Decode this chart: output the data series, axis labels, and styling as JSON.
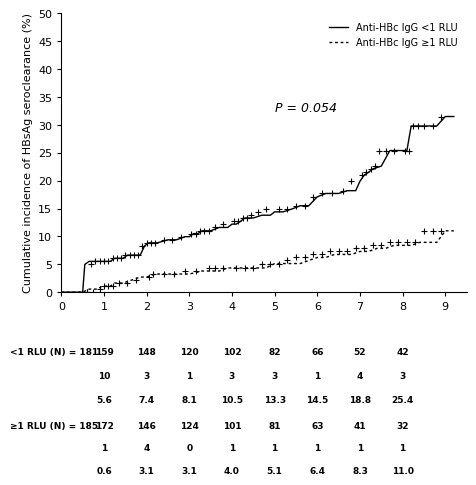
{
  "ylabel": "Cumulative incidence of HBsAg seroclearance (%)",
  "xlim": [
    0,
    9.5
  ],
  "ylim": [
    0,
    50
  ],
  "yticks": [
    0,
    5,
    10,
    15,
    20,
    25,
    30,
    35,
    40,
    45,
    50
  ],
  "xticks": [
    0,
    1,
    2,
    3,
    4,
    5,
    6,
    7,
    8,
    9
  ],
  "p_value_text": "P = 0.054",
  "p_value_x": 5.0,
  "p_value_y": 33,
  "legend_labels": [
    "Anti-HBc IgG <1 RLU",
    "Anti-HBc IgG ≥1 RLU"
  ],
  "line1_color": "#000000",
  "line2_color": "#000000",
  "background_color": "#ffffff",
  "table_row2_values": [
    159,
    148,
    120,
    102,
    82,
    66,
    52,
    42
  ],
  "table_row3_values": [
    10,
    3,
    1,
    3,
    3,
    1,
    4,
    3
  ],
  "table_row4_values": [
    5.6,
    7.4,
    8.1,
    10.5,
    13.3,
    14.5,
    18.8,
    25.4
  ],
  "table_row6_values": [
    172,
    146,
    124,
    101,
    81,
    63,
    41,
    32
  ],
  "table_row7_values": [
    1,
    4,
    0,
    1,
    1,
    1,
    1,
    1
  ],
  "table_row8_values": [
    0.6,
    3.1,
    3.1,
    4.0,
    5.1,
    6.4,
    8.3,
    11.0
  ],
  "solid_x": [
    0,
    0.5,
    0.55,
    0.65,
    0.75,
    0.85,
    0.95,
    1.05,
    1.15,
    1.25,
    1.35,
    1.45,
    1.55,
    1.65,
    1.75,
    1.85,
    1.95,
    2.05,
    2.15,
    2.25,
    2.5,
    2.7,
    2.9,
    3.0,
    3.1,
    3.2,
    3.3,
    3.5,
    3.7,
    3.9,
    4.0,
    4.1,
    4.2,
    4.3,
    4.5,
    4.7,
    4.9,
    5.0,
    5.2,
    5.4,
    5.6,
    5.8,
    6.0,
    6.2,
    6.5,
    6.7,
    6.9,
    7.0,
    7.1,
    7.2,
    7.3,
    7.5,
    7.7,
    7.9,
    8.0,
    8.1,
    8.2,
    8.3,
    8.4,
    8.6,
    8.8,
    9.0,
    9.2
  ],
  "solid_y": [
    0,
    0,
    4.97,
    5.52,
    5.52,
    5.52,
    5.52,
    5.52,
    5.52,
    6.08,
    6.08,
    6.08,
    6.64,
    6.64,
    6.64,
    6.64,
    8.29,
    8.84,
    8.84,
    8.84,
    9.39,
    9.39,
    9.95,
    9.95,
    10.5,
    10.5,
    11.0,
    11.0,
    11.6,
    11.6,
    12.2,
    12.2,
    12.7,
    13.3,
    13.3,
    13.8,
    13.8,
    14.4,
    14.4,
    14.9,
    15.5,
    15.5,
    17.1,
    17.7,
    17.7,
    18.2,
    18.2,
    19.9,
    21.0,
    21.5,
    22.1,
    22.6,
    25.4,
    25.4,
    25.4,
    25.4,
    29.8,
    29.8,
    29.8,
    29.8,
    29.8,
    31.5,
    31.5
  ],
  "dashed_x": [
    0,
    0.5,
    0.65,
    0.85,
    0.95,
    1.05,
    1.15,
    1.25,
    1.45,
    1.65,
    1.85,
    2.0,
    2.2,
    2.5,
    2.8,
    3.0,
    3.3,
    3.5,
    3.7,
    3.9,
    4.0,
    4.2,
    4.4,
    4.6,
    4.8,
    5.0,
    5.2,
    5.4,
    5.6,
    5.8,
    6.0,
    6.2,
    6.4,
    6.6,
    6.8,
    7.0,
    7.2,
    7.4,
    7.6,
    7.8,
    8.0,
    8.2,
    8.4,
    8.6,
    8.8,
    9.0,
    9.2
  ],
  "dashed_y": [
    0,
    0,
    0.54,
    0.54,
    1.08,
    1.08,
    1.08,
    1.63,
    1.63,
    2.17,
    2.71,
    2.71,
    3.25,
    3.25,
    3.25,
    3.25,
    3.79,
    3.79,
    3.79,
    4.34,
    4.34,
    4.34,
    4.34,
    4.34,
    4.34,
    5.13,
    5.13,
    5.13,
    5.13,
    5.68,
    6.22,
    6.22,
    6.76,
    6.76,
    6.76,
    7.3,
    7.3,
    7.85,
    7.85,
    8.39,
    8.39,
    8.39,
    8.93,
    8.93,
    8.93,
    11.0,
    11.0
  ],
  "solid_censor_x": [
    0.6,
    0.7,
    0.8,
    0.9,
    1.0,
    1.1,
    1.2,
    1.3,
    1.4,
    1.5,
    1.6,
    1.7,
    1.8,
    1.9,
    2.0,
    2.1,
    2.2,
    2.4,
    2.6,
    2.8,
    3.05,
    3.15,
    3.25,
    3.35,
    3.45,
    3.6,
    3.8,
    4.05,
    4.15,
    4.25,
    4.35,
    4.45,
    4.6,
    4.8,
    5.1,
    5.3,
    5.5,
    5.7,
    5.9,
    6.1,
    6.35,
    6.6,
    6.8,
    7.05,
    7.15,
    7.25,
    7.35,
    7.45,
    7.6,
    7.8,
    8.05,
    8.15,
    8.25,
    8.35,
    8.5,
    8.7,
    8.9
  ],
  "solid_censor_y": [
    0,
    4.97,
    5.52,
    5.52,
    5.52,
    5.52,
    6.08,
    6.08,
    6.08,
    6.64,
    6.64,
    6.64,
    6.64,
    8.29,
    8.84,
    8.84,
    8.84,
    9.39,
    9.39,
    9.95,
    10.5,
    10.5,
    11.0,
    11.0,
    11.0,
    11.6,
    12.2,
    12.7,
    12.7,
    13.3,
    13.3,
    13.8,
    14.4,
    14.9,
    14.9,
    14.9,
    15.5,
    15.5,
    17.1,
    17.7,
    17.7,
    18.2,
    19.9,
    21.0,
    21.5,
    22.1,
    22.6,
    25.4,
    25.4,
    25.4,
    25.4,
    25.4,
    29.8,
    29.8,
    29.8,
    29.8,
    31.5
  ],
  "dashed_censor_x": [
    0.6,
    0.75,
    0.9,
    1.0,
    1.1,
    1.2,
    1.35,
    1.55,
    1.75,
    2.05,
    2.15,
    2.4,
    2.65,
    2.9,
    3.15,
    3.45,
    3.6,
    3.8,
    4.1,
    4.3,
    4.5,
    4.7,
    4.9,
    5.1,
    5.3,
    5.5,
    5.7,
    5.9,
    6.1,
    6.3,
    6.5,
    6.7,
    6.9,
    7.1,
    7.3,
    7.5,
    7.7,
    7.9,
    8.1,
    8.3,
    8.5,
    8.7,
    8.9
  ],
  "dashed_censor_y": [
    0,
    0,
    0.54,
    1.08,
    1.08,
    1.08,
    1.63,
    1.63,
    2.17,
    2.71,
    3.25,
    3.25,
    3.25,
    3.79,
    3.79,
    4.34,
    4.34,
    4.34,
    4.34,
    4.34,
    4.34,
    5.13,
    5.13,
    5.13,
    5.68,
    6.22,
    6.22,
    6.76,
    6.76,
    7.3,
    7.3,
    7.3,
    7.85,
    7.85,
    8.39,
    8.39,
    8.93,
    8.93,
    8.93,
    8.93,
    11.0,
    11.0,
    11.0
  ]
}
